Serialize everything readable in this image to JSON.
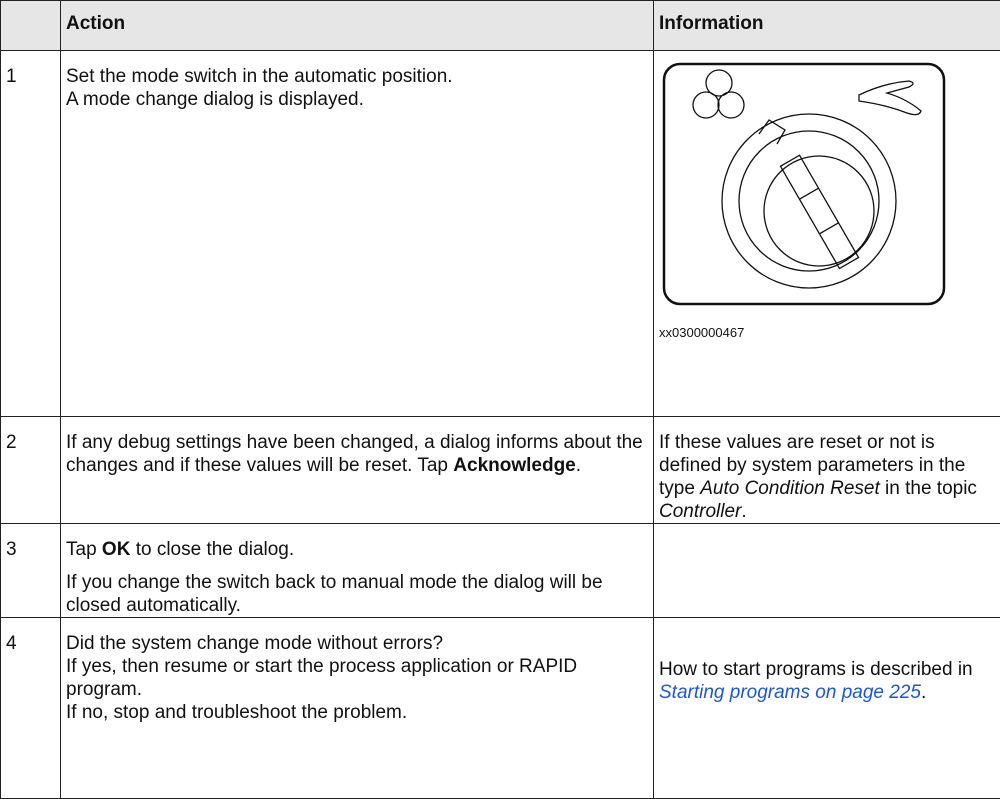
{
  "table": {
    "header": {
      "step": "",
      "action": "Action",
      "information": "Information"
    },
    "rows": [
      {
        "step": "1",
        "action": [
          [
            {
              "text": "Set the mode switch in the automatic position."
            }
          ],
          [
            {
              "text": "A mode change dialog is displayed."
            }
          ]
        ],
        "information": [],
        "figure_caption": "xx0300000467"
      },
      {
        "step": "2",
        "action": [
          [
            {
              "text": "If any debug settings have been changed, a dialog informs about the changes and if these values will be reset. Tap "
            },
            {
              "text": "Acknowledge",
              "style": "bold"
            },
            {
              "text": "."
            }
          ]
        ],
        "information": [
          [
            {
              "text": "If these values are reset or not is defined by system parameters in the type "
            },
            {
              "text": "Auto Condition Reset",
              "style": "italic"
            },
            {
              "text": " in the topic "
            },
            {
              "text": "Controller",
              "style": "italic"
            },
            {
              "text": "."
            }
          ]
        ]
      },
      {
        "step": "3",
        "action": [
          [
            {
              "text": "Tap "
            },
            {
              "text": "OK",
              "style": "bold"
            },
            {
              "text": " to close the dialog."
            }
          ],
          [
            {
              "text": "If you change the switch back to manual mode the dialog will be closed automatically."
            }
          ]
        ],
        "information": []
      },
      {
        "step": "4",
        "action": [
          [
            {
              "text": "Did the system change mode without errors?"
            }
          ],
          [
            {
              "text": "If yes, then resume or start the process application or RAPID program."
            }
          ],
          [
            {
              "text": "If no, stop and troubleshoot the problem."
            }
          ]
        ],
        "information": [
          [
            {
              "text": "How to start programs is described in "
            },
            {
              "text": "Starting programs on page 225",
              "style": "link"
            },
            {
              "text": "."
            }
          ]
        ]
      }
    ]
  }
}
